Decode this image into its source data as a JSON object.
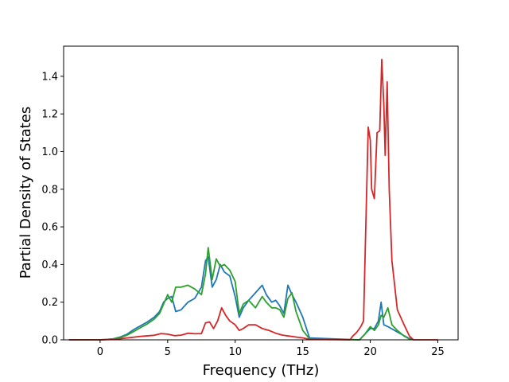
{
  "chart_data": {
    "type": "line",
    "xlabel": "Frequency (THz)",
    "ylabel": "Partial Density of States",
    "xlim": [
      -2.7,
      26.5
    ],
    "ylim": [
      0,
      1.56
    ],
    "xticks": [
      0,
      5,
      10,
      15,
      20,
      25
    ],
    "yticks": [
      0.0,
      0.2,
      0.4,
      0.6,
      0.8,
      1.0,
      1.2,
      1.4
    ],
    "ytick_labels": [
      "0.0",
      "0.2",
      "0.4",
      "0.6",
      "0.8",
      "1.0",
      "1.2",
      "1.4"
    ],
    "grid": false,
    "legend": "none",
    "series": [
      {
        "color": "#1f77b4",
        "points": [
          [
            -2.3,
            0
          ],
          [
            0,
            0
          ],
          [
            0.5,
            0.002
          ],
          [
            1,
            0.006
          ],
          [
            1.5,
            0.015
          ],
          [
            2,
            0.03
          ],
          [
            2.5,
            0.055
          ],
          [
            3,
            0.075
          ],
          [
            3.5,
            0.095
          ],
          [
            4,
            0.12
          ],
          [
            4.4,
            0.15
          ],
          [
            4.7,
            0.2
          ],
          [
            5,
            0.22
          ],
          [
            5.3,
            0.23
          ],
          [
            5.6,
            0.15
          ],
          [
            6,
            0.16
          ],
          [
            6.5,
            0.2
          ],
          [
            7,
            0.22
          ],
          [
            7.5,
            0.28
          ],
          [
            7.8,
            0.42
          ],
          [
            8,
            0.44
          ],
          [
            8.3,
            0.28
          ],
          [
            8.6,
            0.32
          ],
          [
            8.9,
            0.4
          ],
          [
            9.2,
            0.36
          ],
          [
            9.6,
            0.34
          ],
          [
            10,
            0.23
          ],
          [
            10.3,
            0.12
          ],
          [
            10.6,
            0.17
          ],
          [
            11,
            0.21
          ],
          [
            11.5,
            0.25
          ],
          [
            12,
            0.29
          ],
          [
            12.3,
            0.24
          ],
          [
            12.7,
            0.2
          ],
          [
            13,
            0.21
          ],
          [
            13.3,
            0.18
          ],
          [
            13.6,
            0.14
          ],
          [
            13.9,
            0.29
          ],
          [
            14.2,
            0.24
          ],
          [
            14.5,
            0.2
          ],
          [
            15,
            0.12
          ],
          [
            15.5,
            0.01
          ],
          [
            19.2,
            0
          ],
          [
            19.6,
            0.03
          ],
          [
            20,
            0.06
          ],
          [
            20.3,
            0.06
          ],
          [
            20.6,
            0.1
          ],
          [
            20.8,
            0.2
          ],
          [
            21,
            0.08
          ],
          [
            21.3,
            0.07
          ],
          [
            21.8,
            0.05
          ],
          [
            22.3,
            0.03
          ],
          [
            22.8,
            0.01
          ],
          [
            23.2,
            0
          ]
        ]
      },
      {
        "color": "#2ca02c",
        "points": [
          [
            -2.3,
            0
          ],
          [
            0,
            0
          ],
          [
            0.5,
            0.002
          ],
          [
            1,
            0.005
          ],
          [
            1.5,
            0.012
          ],
          [
            2,
            0.025
          ],
          [
            2.5,
            0.045
          ],
          [
            3,
            0.065
          ],
          [
            3.5,
            0.085
          ],
          [
            4,
            0.11
          ],
          [
            4.4,
            0.14
          ],
          [
            4.7,
            0.19
          ],
          [
            5,
            0.24
          ],
          [
            5.3,
            0.2
          ],
          [
            5.6,
            0.28
          ],
          [
            6,
            0.28
          ],
          [
            6.5,
            0.29
          ],
          [
            7,
            0.27
          ],
          [
            7.5,
            0.24
          ],
          [
            7.8,
            0.35
          ],
          [
            8,
            0.49
          ],
          [
            8.3,
            0.32
          ],
          [
            8.6,
            0.43
          ],
          [
            8.9,
            0.39
          ],
          [
            9.2,
            0.4
          ],
          [
            9.6,
            0.37
          ],
          [
            10,
            0.31
          ],
          [
            10.3,
            0.14
          ],
          [
            10.6,
            0.19
          ],
          [
            11,
            0.21
          ],
          [
            11.5,
            0.17
          ],
          [
            12,
            0.23
          ],
          [
            12.3,
            0.2
          ],
          [
            12.7,
            0.17
          ],
          [
            13,
            0.17
          ],
          [
            13.3,
            0.16
          ],
          [
            13.6,
            0.12
          ],
          [
            13.9,
            0.22
          ],
          [
            14.2,
            0.25
          ],
          [
            14.5,
            0.15
          ],
          [
            15,
            0.05
          ],
          [
            15.5,
            0.005
          ],
          [
            19.2,
            0
          ],
          [
            19.6,
            0.03
          ],
          [
            20,
            0.07
          ],
          [
            20.3,
            0.05
          ],
          [
            20.6,
            0.08
          ],
          [
            20.8,
            0.13
          ],
          [
            21,
            0.12
          ],
          [
            21.3,
            0.17
          ],
          [
            21.6,
            0.08
          ],
          [
            22,
            0.05
          ],
          [
            22.5,
            0.02
          ],
          [
            23,
            0
          ]
        ]
      },
      {
        "color": "#d62728",
        "points": [
          [
            -2.3,
            0
          ],
          [
            0,
            0
          ],
          [
            1,
            0.002
          ],
          [
            2,
            0.01
          ],
          [
            3,
            0.018
          ],
          [
            4,
            0.024
          ],
          [
            4.5,
            0.033
          ],
          [
            5,
            0.03
          ],
          [
            5.5,
            0.022
          ],
          [
            6,
            0.025
          ],
          [
            6.5,
            0.035
          ],
          [
            7,
            0.032
          ],
          [
            7.5,
            0.033
          ],
          [
            7.8,
            0.09
          ],
          [
            8.1,
            0.095
          ],
          [
            8.4,
            0.06
          ],
          [
            8.7,
            0.1
          ],
          [
            9,
            0.17
          ],
          [
            9.3,
            0.13
          ],
          [
            9.6,
            0.1
          ],
          [
            10,
            0.08
          ],
          [
            10.3,
            0.05
          ],
          [
            10.6,
            0.06
          ],
          [
            11,
            0.08
          ],
          [
            11.5,
            0.08
          ],
          [
            12,
            0.06
          ],
          [
            12.5,
            0.05
          ],
          [
            13,
            0.035
          ],
          [
            13.5,
            0.025
          ],
          [
            14,
            0.02
          ],
          [
            14.5,
            0.015
          ],
          [
            15,
            0.01
          ],
          [
            15.5,
            0.003
          ],
          [
            18.5,
            0
          ],
          [
            18.7,
            0.02
          ],
          [
            19,
            0.04
          ],
          [
            19.3,
            0.07
          ],
          [
            19.5,
            0.1
          ],
          [
            19.7,
            0.7
          ],
          [
            19.85,
            1.13
          ],
          [
            20,
            1.06
          ],
          [
            20.1,
            0.8
          ],
          [
            20.3,
            0.75
          ],
          [
            20.5,
            1.1
          ],
          [
            20.7,
            1.11
          ],
          [
            20.85,
            1.49
          ],
          [
            21,
            1.25
          ],
          [
            21.1,
            0.98
          ],
          [
            21.25,
            1.37
          ],
          [
            21.4,
            0.8
          ],
          [
            21.6,
            0.42
          ],
          [
            22,
            0.16
          ],
          [
            22.5,
            0.08
          ],
          [
            22.9,
            0.02
          ],
          [
            23.2,
            0
          ],
          [
            25,
            0
          ]
        ]
      }
    ]
  }
}
